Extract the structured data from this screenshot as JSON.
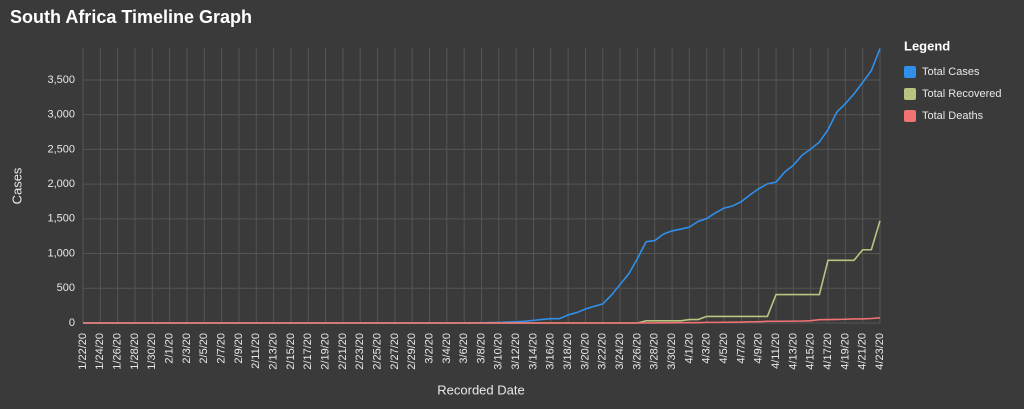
{
  "chart_data": {
    "type": "line",
    "title": "South Africa Timeline Graph",
    "x_label": "Recorded Date",
    "y_label": "Cases",
    "legend_title": "Legend",
    "legend_position": "right",
    "grid": true,
    "categories": [
      "1/22/20",
      null,
      "1/24/20",
      null,
      "1/26/20",
      null,
      "1/28/20",
      null,
      "1/30/20",
      null,
      "2/1/20",
      null,
      "2/3/20",
      null,
      "2/5/20",
      null,
      "2/7/20",
      null,
      "2/9/20",
      null,
      "2/11/20",
      null,
      "2/13/20",
      null,
      "2/15/20",
      null,
      "2/17/20",
      null,
      "2/19/20",
      null,
      "2/21/20",
      null,
      "2/23/20",
      null,
      "2/25/20",
      null,
      "2/27/20",
      null,
      "2/29/20",
      null,
      "3/2/20",
      null,
      "3/4/20",
      null,
      "3/6/20",
      null,
      "3/8/20",
      null,
      "3/10/20",
      null,
      "3/12/20",
      null,
      "3/14/20",
      null,
      "3/16/20",
      null,
      "3/18/20",
      null,
      "3/20/20",
      null,
      "3/22/20",
      null,
      "3/24/20",
      null,
      "3/26/20",
      null,
      "3/28/20",
      null,
      "3/30/20",
      null,
      "4/1/20",
      null,
      "4/3/20",
      null,
      "4/5/20",
      null,
      "4/7/20",
      null,
      "4/9/20",
      null,
      "4/11/20",
      null,
      "4/13/20",
      null,
      "4/15/20",
      null,
      "4/17/20",
      null,
      "4/19/20",
      null,
      "4/21/20",
      null,
      "4/23/20"
    ],
    "series": [
      {
        "name": "Total Cases",
        "color": "#2f8fea",
        "values": [
          0,
          0,
          0,
          0,
          0,
          0,
          0,
          0,
          0,
          0,
          0,
          0,
          0,
          0,
          0,
          0,
          0,
          0,
          0,
          0,
          0,
          0,
          0,
          0,
          0,
          0,
          0,
          0,
          0,
          0,
          0,
          0,
          0,
          0,
          0,
          0,
          0,
          0,
          0,
          0,
          0,
          0,
          0,
          1,
          1,
          2,
          3,
          7,
          7,
          13,
          17,
          24,
          38,
          51,
          62,
          62,
          116,
          150,
          202,
          240,
          274,
          402,
          554,
          709,
          927,
          1170,
          1187,
          1280,
          1326,
          1353,
          1380,
          1462,
          1505,
          1585,
          1655,
          1686,
          1749,
          1845,
          1934,
          2003,
          2028,
          2173,
          2272,
          2415,
          2506,
          2605,
          2783,
          3034,
          3158,
          3300,
          3465,
          3635,
          3953
        ]
      },
      {
        "name": "Total Recovered",
        "color": "#b8c480",
        "values": [
          0,
          0,
          0,
          0,
          0,
          0,
          0,
          0,
          0,
          0,
          0,
          0,
          0,
          0,
          0,
          0,
          0,
          0,
          0,
          0,
          0,
          0,
          0,
          0,
          0,
          0,
          0,
          0,
          0,
          0,
          0,
          0,
          0,
          0,
          0,
          0,
          0,
          0,
          0,
          0,
          0,
          0,
          0,
          0,
          0,
          0,
          0,
          0,
          0,
          0,
          0,
          0,
          0,
          0,
          0,
          0,
          0,
          0,
          0,
          0,
          0,
          0,
          0,
          0,
          0,
          31,
          31,
          31,
          31,
          31,
          50,
          50,
          95,
          95,
          95,
          95,
          95,
          95,
          95,
          95,
          410,
          410,
          410,
          410,
          410,
          410,
          903,
          903,
          903,
          903,
          1055,
          1055,
          1473
        ]
      },
      {
        "name": "Total Deaths",
        "color": "#f07272",
        "values": [
          0,
          0,
          0,
          0,
          0,
          0,
          0,
          0,
          0,
          0,
          0,
          0,
          0,
          0,
          0,
          0,
          0,
          0,
          0,
          0,
          0,
          0,
          0,
          0,
          0,
          0,
          0,
          0,
          0,
          0,
          0,
          0,
          0,
          0,
          0,
          0,
          0,
          0,
          0,
          0,
          0,
          0,
          0,
          0,
          0,
          0,
          0,
          0,
          0,
          0,
          0,
          0,
          0,
          0,
          0,
          0,
          0,
          0,
          0,
          0,
          0,
          0,
          0,
          0,
          0,
          1,
          1,
          2,
          3,
          5,
          5,
          5,
          9,
          9,
          11,
          12,
          13,
          18,
          18,
          24,
          25,
          25,
          27,
          27,
          34,
          48,
          50,
          52,
          54,
          58,
          58,
          65,
          75
        ]
      }
    ],
    "ylim": [
      0,
      3960
    ],
    "yticks": [
      0,
      {
        "value": 500,
        "label": "500"
      },
      {
        "value": 1000,
        "label": "1,000"
      },
      {
        "value": 1500,
        "label": "1,500"
      },
      {
        "value": 2000,
        "label": "2,000"
      },
      {
        "value": 2500,
        "label": "2,500"
      },
      {
        "value": 3000,
        "label": "3,000"
      },
      {
        "value": 3500,
        "label": "3,500"
      }
    ]
  }
}
